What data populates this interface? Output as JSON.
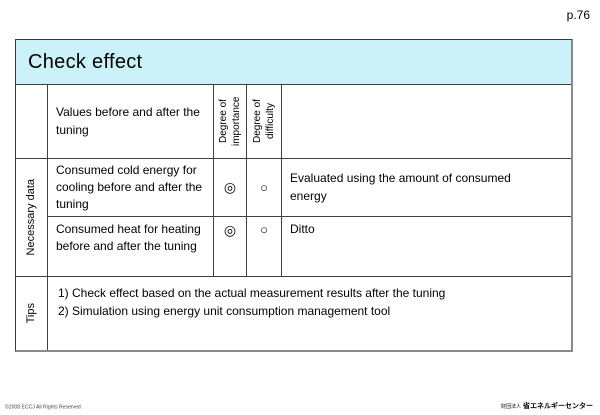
{
  "page": {
    "page_number": "p.76"
  },
  "slide": {
    "title": "Check effect",
    "table": {
      "header": {
        "values_col": "Values before and after the tuning",
        "importance_col": "Degree of importance",
        "difficulty_col": "Degree of difficulty"
      },
      "row_group_label": "Necessary data",
      "rows": [
        {
          "description": "Consumed cold energy for cooling before and after the tuning",
          "importance": "◎",
          "difficulty": "○",
          "evaluation": "Evaluated using the amount of consumed energy"
        },
        {
          "description": "Consumed heat for heating before and after the tuning",
          "importance": "◎",
          "difficulty": "○",
          "evaluation": "Ditto"
        }
      ],
      "tips": {
        "label": "Tips",
        "lines": [
          "1) Check effect based on the actual measurement results after the tuning",
          "2) Simulation using energy unit consumption management tool"
        ]
      }
    }
  },
  "footer": {
    "copyright": "©2008  ECCJ All Rights Reserved",
    "org_prefix": "財団法人",
    "org_name": "省エネルギーセンター"
  },
  "colors": {
    "title_bg": "#ccf2f9",
    "grid_line": "#3f3f3f"
  }
}
